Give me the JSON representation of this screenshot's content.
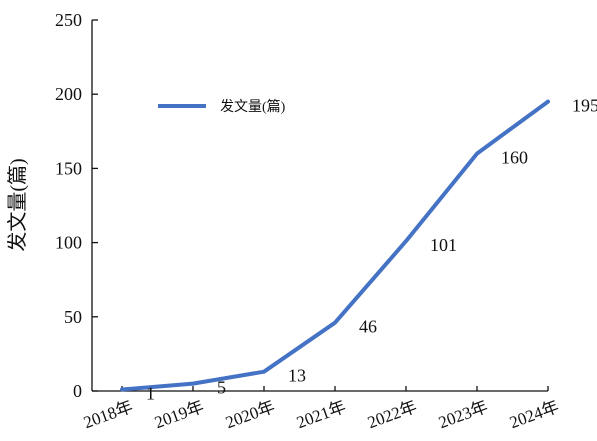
{
  "chart_data": {
    "type": "line",
    "categories": [
      "2018年",
      "2019年",
      "2020年",
      "2021年",
      "2022年",
      "2023年",
      "2024年"
    ],
    "series": [
      {
        "name": "发文量(篇)",
        "values": [
          1,
          5,
          13,
          46,
          101,
          160,
          195
        ],
        "color": "#4472c4"
      }
    ],
    "ylabel": "发文量(篇)",
    "ylim": [
      0,
      250
    ],
    "yticks": [
      0,
      50,
      100,
      150,
      200,
      250
    ],
    "grid": false,
    "legend": "top-left"
  }
}
